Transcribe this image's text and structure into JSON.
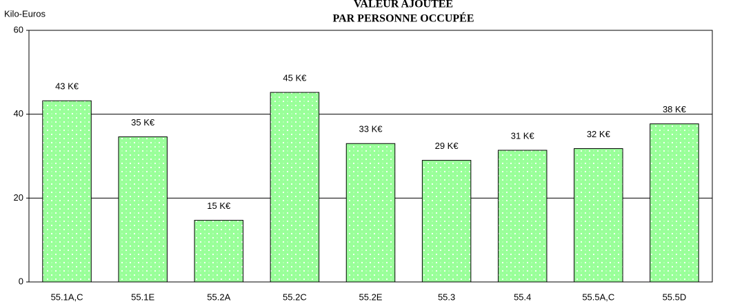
{
  "chart_data": {
    "type": "bar",
    "title": [
      "VALEUR AJOUTÉE",
      "PAR PERSONNE OCCUPÉE"
    ],
    "y_label": "Kilo-Euros",
    "categories": [
      "55.1A,C",
      "55.1E",
      "55.2A",
      "55.2C",
      "55.2E",
      "55.3",
      "55.4",
      "55.5A,C",
      "55.5D"
    ],
    "values": [
      43.2,
      34.6,
      14.7,
      45.2,
      33,
      29,
      31.4,
      31.8,
      37.7
    ],
    "value_labels": [
      "43 K€",
      "35 K€",
      "15 K€",
      "45 K€",
      "33 K€",
      "29 K€",
      "31 K€",
      "32 K€",
      "38 K€"
    ],
    "color": "#99ff99",
    "ylim": [
      0,
      60
    ],
    "yticks": [
      0,
      20,
      40,
      60
    ],
    "grid": true
  }
}
